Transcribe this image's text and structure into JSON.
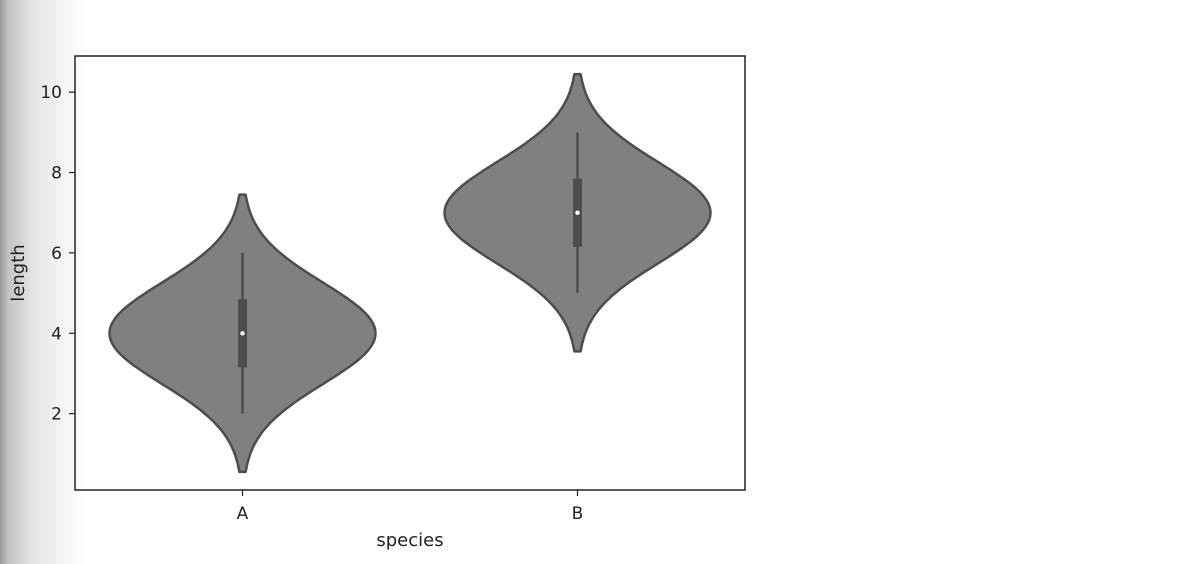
{
  "chart_data": {
    "type": "violin",
    "xlabel": "species",
    "ylabel": "length",
    "ylim": [
      0.1,
      10.9
    ],
    "yticks": [
      2,
      4,
      6,
      8,
      10
    ],
    "categories": [
      "A",
      "B"
    ],
    "violins": [
      {
        "category": "A",
        "min_extent": 0.55,
        "max_extent": 7.45,
        "whisker_low": 2.0,
        "q1": 3.15,
        "median": 4.0,
        "q3": 4.85,
        "whisker_high": 6.0
      },
      {
        "category": "B",
        "min_extent": 3.55,
        "max_extent": 10.45,
        "whisker_low": 5.0,
        "q1": 6.15,
        "median": 7.0,
        "q3": 7.85,
        "whisker_high": 9.0
      }
    ],
    "grid": false,
    "colors": {
      "fill": "#808080",
      "edge": "#4d4d4d",
      "box": "#4d4d4d",
      "median_dot": "#ffffff",
      "axes": "#222222"
    }
  }
}
